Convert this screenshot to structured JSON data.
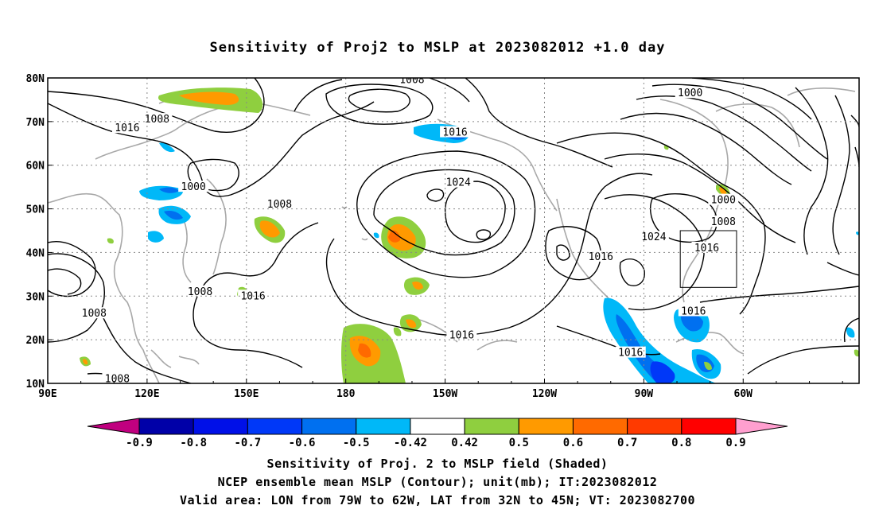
{
  "title": "Sensitivity of Proj2 to MSLP at 2023082012 +1.0 day",
  "lat_labels": [
    "80N",
    "70N",
    "60N",
    "50N",
    "40N",
    "30N",
    "20N",
    "10N"
  ],
  "lon_labels": [
    "90E",
    "120E",
    "150E",
    "180",
    "150W",
    "120W",
    "90W",
    "60W"
  ],
  "contour_labels": [
    {
      "text": "1008",
      "lon": 200,
      "lat": 79.5
    },
    {
      "text": "1000",
      "lon": 284,
      "lat": 76.5
    },
    {
      "text": "1016",
      "lon": 114,
      "lat": 68.5
    },
    {
      "text": "1008",
      "lon": 123,
      "lat": 70.5
    },
    {
      "text": "1016",
      "lon": 213,
      "lat": 67.5
    },
    {
      "text": "1024",
      "lon": 214,
      "lat": 56
    },
    {
      "text": "1000",
      "lon": 134,
      "lat": 55
    },
    {
      "text": "1008",
      "lon": 160,
      "lat": 51
    },
    {
      "text": "1000",
      "lon": 294,
      "lat": 52
    },
    {
      "text": "1008",
      "lon": 294,
      "lat": 47
    },
    {
      "text": "1024",
      "lon": 273,
      "lat": 43.5
    },
    {
      "text": "1016",
      "lon": 289,
      "lat": 41
    },
    {
      "text": "1016",
      "lon": 257,
      "lat": 39
    },
    {
      "text": "1008",
      "lon": 136,
      "lat": 31
    },
    {
      "text": "1016",
      "lon": 152,
      "lat": 30
    },
    {
      "text": "1008",
      "lon": 104,
      "lat": 26
    },
    {
      "text": "1016",
      "lon": 285,
      "lat": 26.5
    },
    {
      "text": "1016",
      "lon": 215,
      "lat": 21
    },
    {
      "text": "1016",
      "lon": 266,
      "lat": 17
    },
    {
      "text": "1008",
      "lon": 111,
      "lat": 11
    }
  ],
  "valid_area": {
    "lon": [
      -79,
      -62
    ],
    "lat": [
      32,
      45
    ]
  },
  "colorbar": {
    "colors": [
      "#c0007f",
      "#0000a8",
      "#0010e8",
      "#0038f8",
      "#0070f0",
      "#00b8f8",
      "#ffffff",
      "#8fcf3f",
      "#ff9a00",
      "#ff6a00",
      "#ff3a00",
      "#ff0000",
      "#ff9fcf"
    ],
    "labels": [
      "-0.9",
      "-0.8",
      "-0.7",
      "-0.6",
      "-0.5",
      "-0.42",
      "0.42",
      "0.5",
      "0.6",
      "0.7",
      "0.8",
      "0.9"
    ]
  },
  "captions": [
    "Sensitivity of Proj. 2 to MSLP field (Shaded)",
    "NCEP ensemble mean MSLP (Contour); unit(mb); IT:2023082012",
    "Valid area: LON from 79W to 62W, LAT from 32N to 45N; VT: 2023082700"
  ]
}
